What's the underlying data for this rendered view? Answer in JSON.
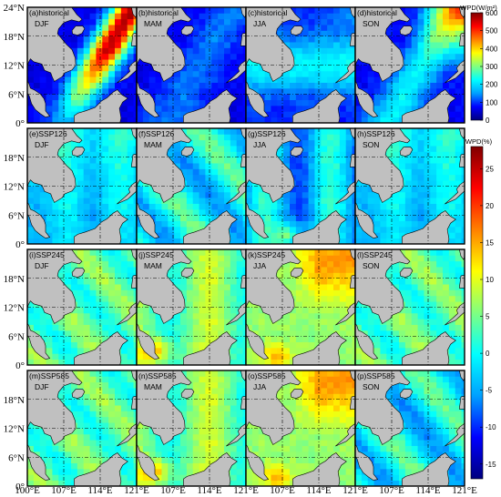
{
  "chart_data": {
    "type": "heatmap",
    "title": "",
    "x_ticks": [
      "100°E",
      "107°E",
      "114°E",
      "121°E"
    ],
    "y_ticks": [
      "0°",
      "6°N",
      "12°N",
      "18°N",
      "24°N"
    ],
    "xlim": [
      100,
      121
    ],
    "ylim": [
      0,
      24
    ],
    "grid": true,
    "rows": [
      {
        "colorbar": {
          "title": "WPD(W/m²)",
          "min": 0,
          "max": 600,
          "ticks": [
            0,
            100,
            200,
            300,
            400,
            500,
            600
          ],
          "stops": [
            "#00007f",
            "#0000ff",
            "#00a0ff",
            "#00ffff",
            "#80ff80",
            "#ffff00",
            "#ff8000",
            "#ff0000",
            "#800000"
          ]
        },
        "panels": [
          {
            "label": "(a)historical",
            "season": "DJF",
            "level": "high"
          },
          {
            "label": "(b)historical",
            "season": "MAM",
            "level": "low"
          },
          {
            "label": "(c)historical",
            "season": "JJA",
            "level": "lowmid"
          },
          {
            "label": "(d)historical",
            "season": "SON",
            "level": "mid"
          }
        ]
      },
      {
        "colorbar": {
          "title": "WPD(%)",
          "min": -17,
          "max": 28,
          "ticks": [
            -15,
            -10,
            -5,
            0,
            5,
            10,
            15,
            20,
            25
          ],
          "stops": [
            "#00007f",
            "#0000ff",
            "#00a0ff",
            "#00ffff",
            "#80ff80",
            "#ffff00",
            "#ff8000",
            "#ff0000",
            "#800000"
          ]
        },
        "panels": [
          {
            "label": "(e)SSP126",
            "season": "DJF",
            "level": "neg"
          },
          {
            "label": "(f)SSP126",
            "season": "MAM",
            "level": "negmid"
          },
          {
            "label": "(g)SSP126",
            "season": "JJA",
            "level": "negmix"
          },
          {
            "label": "(h)SSP126",
            "season": "SON",
            "level": "neg"
          }
        ]
      },
      {
        "colorbar": null,
        "panels": [
          {
            "label": "(i)SSP245",
            "season": "DJF",
            "level": "pos"
          },
          {
            "label": "(j)SSP245",
            "season": "MAM",
            "level": "posmid"
          },
          {
            "label": "(k)SSP245",
            "season": "JJA",
            "level": "poshigh"
          },
          {
            "label": "(l)SSP245",
            "season": "SON",
            "level": "pos"
          }
        ]
      },
      {
        "colorbar": null,
        "panels": [
          {
            "label": "(m)SSP585",
            "season": "DJF",
            "level": "pos"
          },
          {
            "label": "(n)SSP585",
            "season": "MAM",
            "level": "posmid"
          },
          {
            "label": "(o)SSP585",
            "season": "JJA",
            "level": "poshigh"
          },
          {
            "label": "(p)SSP585",
            "season": "SON",
            "level": "negmid"
          }
        ]
      }
    ]
  }
}
